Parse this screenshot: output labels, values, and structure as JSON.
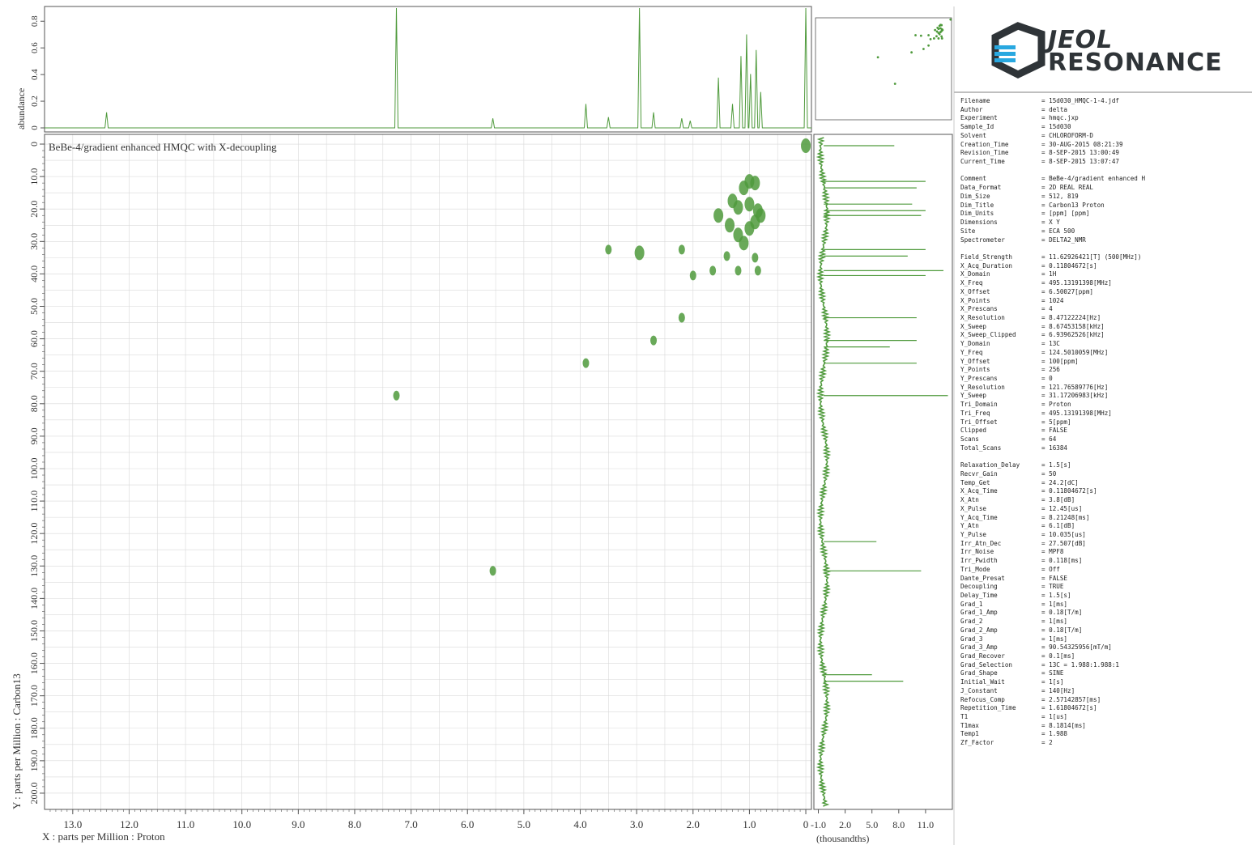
{
  "logo": {
    "line1": "JEOL",
    "line2": "RESONANCE"
  },
  "colors": {
    "trace": "#4f9a3c",
    "grid": "#d9d9d9",
    "axis": "#555555",
    "logo": "#2f3438",
    "logo_accent": "#29a8e0"
  },
  "chart_data": [
    {
      "type": "scatter",
      "name": "hmqc-2d",
      "title": "BeBe-4/gradient enhanced HMQC with X-decoupling",
      "xlabel": "X : parts per Million : Proton",
      "ylabel": "Y : parts per Million : Carbon13",
      "xlim": [
        13.5,
        -0.1
      ],
      "ylim": [
        -3,
        205
      ],
      "x_ticks": [
        "13.0",
        "12.0",
        "11.0",
        "10.0",
        "9.0",
        "8.0",
        "7.0",
        "6.0",
        "5.0",
        "4.0",
        "3.0",
        "2.0",
        "1.0",
        "0"
      ],
      "y_ticks": [
        "0",
        "10.0",
        "20.0",
        "30.0",
        "40.0",
        "50.0",
        "60.0",
        "70.0",
        "80.0",
        "90.0",
        "100.0",
        "110.0",
        "120.0",
        "130.0",
        "140.0",
        "150.0",
        "160.0",
        "170.0",
        "180.0",
        "190.0",
        "200.0"
      ],
      "grid": true,
      "points": [
        {
          "x": 0.0,
          "y": 0.5
        },
        {
          "x": 1.0,
          "y": 11.5
        },
        {
          "x": 1.1,
          "y": 13.5
        },
        {
          "x": 0.9,
          "y": 12.0
        },
        {
          "x": 1.3,
          "y": 17.5
        },
        {
          "x": 1.2,
          "y": 19.5
        },
        {
          "x": 1.0,
          "y": 18.5
        },
        {
          "x": 0.85,
          "y": 20.5
        },
        {
          "x": 0.8,
          "y": 22.0
        },
        {
          "x": 1.55,
          "y": 22.0
        },
        {
          "x": 0.9,
          "y": 24.0
        },
        {
          "x": 1.35,
          "y": 25.0
        },
        {
          "x": 1.2,
          "y": 28.0
        },
        {
          "x": 1.0,
          "y": 26.0
        },
        {
          "x": 1.1,
          "y": 30.5
        },
        {
          "x": 3.5,
          "y": 32.5
        },
        {
          "x": 2.95,
          "y": 33.5
        },
        {
          "x": 2.2,
          "y": 32.5
        },
        {
          "x": 1.4,
          "y": 34.5
        },
        {
          "x": 0.9,
          "y": 35.0
        },
        {
          "x": 1.65,
          "y": 39.0
        },
        {
          "x": 1.2,
          "y": 39.0
        },
        {
          "x": 0.85,
          "y": 39.0
        },
        {
          "x": 2.0,
          "y": 40.5
        },
        {
          "x": 2.2,
          "y": 53.5
        },
        {
          "x": 2.7,
          "y": 60.5
        },
        {
          "x": 3.9,
          "y": 67.5
        },
        {
          "x": 7.26,
          "y": 77.5
        },
        {
          "x": 5.55,
          "y": 131.5
        }
      ]
    },
    {
      "type": "line",
      "name": "proton-projection",
      "ylabel": "abundance",
      "xlim": [
        13.5,
        -0.1
      ],
      "ylim": [
        0,
        0.85
      ],
      "y_ticks": [
        "0",
        "0.2",
        "0.4",
        "0.6",
        "0.8"
      ],
      "peaks": [
        {
          "x": 12.4,
          "height": 0.13
        },
        {
          "x": 7.26,
          "height": 1.0
        },
        {
          "x": 5.55,
          "height": 0.08
        },
        {
          "x": 3.9,
          "height": 0.2
        },
        {
          "x": 3.5,
          "height": 0.09
        },
        {
          "x": 2.95,
          "height": 1.0
        },
        {
          "x": 2.7,
          "height": 0.13
        },
        {
          "x": 2.2,
          "height": 0.08
        },
        {
          "x": 2.05,
          "height": 0.06
        },
        {
          "x": 1.55,
          "height": 0.42
        },
        {
          "x": 1.3,
          "height": 0.2
        },
        {
          "x": 1.15,
          "height": 0.6
        },
        {
          "x": 1.05,
          "height": 0.78
        },
        {
          "x": 0.98,
          "height": 0.45
        },
        {
          "x": 0.88,
          "height": 0.65
        },
        {
          "x": 0.8,
          "height": 0.3
        },
        {
          "x": 0.0,
          "height": 1.0
        }
      ]
    },
    {
      "type": "line",
      "name": "carbon-projection",
      "xlabel": "(thousandths)",
      "x_ticks": [
        "-1.0",
        "2.0",
        "5.0",
        "8.0",
        "11.0"
      ],
      "ylim": [
        -3,
        205
      ],
      "baseline_value": -0.4,
      "peaks": [
        {
          "y": 0.5,
          "value": 7.5
        },
        {
          "y": 11.5,
          "value": 11.0
        },
        {
          "y": 13.5,
          "value": 10.0
        },
        {
          "y": 18.5,
          "value": 9.5
        },
        {
          "y": 20.5,
          "value": 11.0
        },
        {
          "y": 22.0,
          "value": 10.5
        },
        {
          "y": 32.5,
          "value": 11.0
        },
        {
          "y": 34.5,
          "value": 9.0
        },
        {
          "y": 39.0,
          "value": 13.0
        },
        {
          "y": 40.5,
          "value": 11.0
        },
        {
          "y": 53.5,
          "value": 10.0
        },
        {
          "y": 60.5,
          "value": 10.0
        },
        {
          "y": 62.5,
          "value": 7.0
        },
        {
          "y": 67.5,
          "value": 10.0
        },
        {
          "y": 77.5,
          "value": 13.5
        },
        {
          "y": 122.5,
          "value": 5.5
        },
        {
          "y": 131.5,
          "value": 10.5
        },
        {
          "y": 163.5,
          "value": 5.0
        },
        {
          "y": 165.5,
          "value": 8.5
        }
      ]
    }
  ],
  "parameters": [
    {
      "key": "Filename",
      "value": "= 15d030_HMQC-1-4.jdf"
    },
    {
      "key": "Author",
      "value": "= delta"
    },
    {
      "key": "Experiment",
      "value": "= hmqc.jxp"
    },
    {
      "key": "Sample_Id",
      "value": "= 15d030"
    },
    {
      "key": "Solvent",
      "value": "= CHLOROFORM-D"
    },
    {
      "key": "Creation_Time",
      "value": "= 30-AUG-2015 08:21:39"
    },
    {
      "key": "Revision_Time",
      "value": "=  8-SEP-2015 13:00:49"
    },
    {
      "key": "Current_Time",
      "value": "=  8-SEP-2015 13:07:47"
    },
    {
      "key": "",
      "value": ""
    },
    {
      "key": "Comment",
      "value": "= BeBe-4/gradient enhanced H"
    },
    {
      "key": "Data_Format",
      "value": "= 2D REAL REAL"
    },
    {
      "key": "Dim_Size",
      "value": "= 512, 819"
    },
    {
      "key": "Dim_Title",
      "value": "= Carbon13 Proton"
    },
    {
      "key": "Dim_Units",
      "value": "= [ppm] [ppm]"
    },
    {
      "key": "Dimensions",
      "value": "= X Y"
    },
    {
      "key": "Site",
      "value": "= ECA 500"
    },
    {
      "key": "Spectrometer",
      "value": "= DELTA2_NMR"
    },
    {
      "key": "",
      "value": ""
    },
    {
      "key": "Field_Strength",
      "value": "= 11.62926421[T] (500[MHz])"
    },
    {
      "key": "X_Acq_Duration",
      "value": "= 0.11804672[s]"
    },
    {
      "key": "X_Domain",
      "value": "= 1H"
    },
    {
      "key": "X_Freq",
      "value": "= 495.13191398[MHz]"
    },
    {
      "key": "X_Offset",
      "value": "= 6.50027[ppm]"
    },
    {
      "key": "X_Points",
      "value": "= 1024"
    },
    {
      "key": "X_Prescans",
      "value": "= 4"
    },
    {
      "key": "X_Resolution",
      "value": "= 8.47122224[Hz]"
    },
    {
      "key": "X_Sweep",
      "value": "= 8.67453158[kHz]"
    },
    {
      "key": "X_Sweep_Clipped",
      "value": "= 6.93962526[kHz]"
    },
    {
      "key": "Y_Domain",
      "value": "= 13C"
    },
    {
      "key": "Y_Freq",
      "value": "= 124.5010059[MHz]"
    },
    {
      "key": "Y_Offset",
      "value": "= 100[ppm]"
    },
    {
      "key": "Y_Points",
      "value": "= 256"
    },
    {
      "key": "Y_Prescans",
      "value": "= 0"
    },
    {
      "key": "Y_Resolution",
      "value": "= 121.76589776[Hz]"
    },
    {
      "key": "Y_Sweep",
      "value": "= 31.17206983[kHz]"
    },
    {
      "key": "Tri_Domain",
      "value": "= Proton"
    },
    {
      "key": "Tri_Freq",
      "value": "= 495.13191398[MHz]"
    },
    {
      "key": "Tri_Offset",
      "value": "= 5[ppm]"
    },
    {
      "key": "Clipped",
      "value": "= FALSE"
    },
    {
      "key": "Scans",
      "value": "= 64"
    },
    {
      "key": "Total_Scans",
      "value": "= 16384"
    },
    {
      "key": "",
      "value": ""
    },
    {
      "key": "Relaxation_Delay",
      "value": "= 1.5[s]"
    },
    {
      "key": "Recvr_Gain",
      "value": "= 50"
    },
    {
      "key": "Temp_Get",
      "value": "= 24.2[dC]"
    },
    {
      "key": "X_Acq_Time",
      "value": "= 0.11804672[s]"
    },
    {
      "key": "X_Atn",
      "value": "= 3.8[dB]"
    },
    {
      "key": "X_Pulse",
      "value": "= 12.45[us]"
    },
    {
      "key": "Y_Acq_Time",
      "value": "= 8.21248[ms]"
    },
    {
      "key": "Y_Atn",
      "value": "= 6.1[dB]"
    },
    {
      "key": "Y_Pulse",
      "value": "= 10.035[us]"
    },
    {
      "key": "Irr_Atn_Dec",
      "value": "= 27.507[dB]"
    },
    {
      "key": "Irr_Noise",
      "value": "= MPF8"
    },
    {
      "key": "Irr_Pwidth",
      "value": "= 0.118[ms]"
    },
    {
      "key": "Tri_Mode",
      "value": "= Off"
    },
    {
      "key": "Dante_Presat",
      "value": "= FALSE"
    },
    {
      "key": "Decoupling",
      "value": "= TRUE"
    },
    {
      "key": "Delay_Time",
      "value": "= 1.5[s]"
    },
    {
      "key": "Grad_1",
      "value": "= 1[ms]"
    },
    {
      "key": "Grad_1_Amp",
      "value": "= 0.18[T/m]"
    },
    {
      "key": "Grad_2",
      "value": "= 1[ms]"
    },
    {
      "key": "Grad_2_Amp",
      "value": "= 0.18[T/m]"
    },
    {
      "key": "Grad_3",
      "value": "= 1[ms]"
    },
    {
      "key": "Grad_3_Amp",
      "value": "= 90.54325956[mT/m]"
    },
    {
      "key": "Grad_Recover",
      "value": "= 0.1[ms]"
    },
    {
      "key": "Grad_Selection",
      "value": "= 13C = 1.988:1.988:1"
    },
    {
      "key": "Grad_Shape",
      "value": "= SINE"
    },
    {
      "key": "Initial_Wait",
      "value": "= 1[s]"
    },
    {
      "key": "J_Constant",
      "value": "= 140[Hz]"
    },
    {
      "key": "Refocus_Comp",
      "value": "= 2.57142857[ms]"
    },
    {
      "key": "Repetition_Time",
      "value": "= 1.61804672[s]"
    },
    {
      "key": "T1",
      "value": "= 1[us]"
    },
    {
      "key": "T1max",
      "value": "= 8.1814[ms]"
    },
    {
      "key": "Temp1",
      "value": "= 1.988"
    },
    {
      "key": "Zf_Factor",
      "value": "= 2"
    }
  ]
}
